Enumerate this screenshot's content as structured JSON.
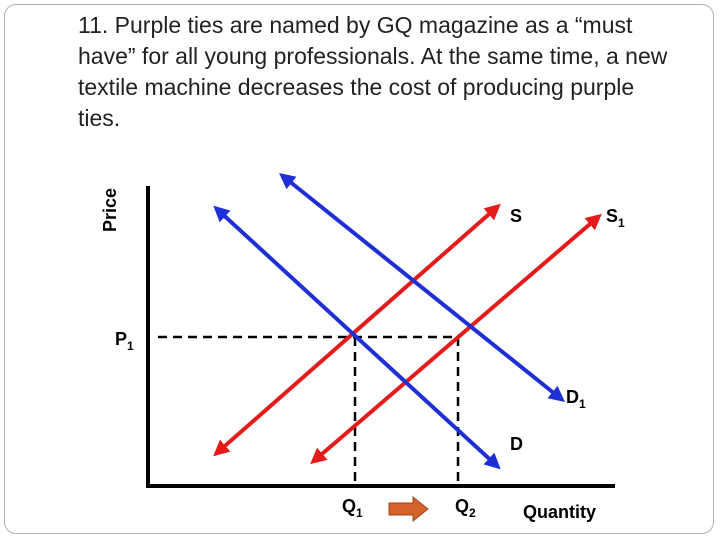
{
  "title": "11. Purple ties are named by GQ magazine as a “must have” for all young professionals. At the same time, a new textile machine decreases the cost of producing purple ties.",
  "diagram": {
    "y_axis_label": "Price",
    "x_axis_label": "Quantity",
    "price_label": "P",
    "price_sub": "1",
    "q1_label": "Q",
    "q1_sub": "1",
    "q2_label": "Q",
    "q2_sub": "2",
    "curves": {
      "supply": {
        "label": "S",
        "sub": "",
        "color": "#e31b1b"
      },
      "supply_new": {
        "label": "S",
        "sub": "1",
        "color": "#e31b1b"
      },
      "demand": {
        "label": "D",
        "sub": "",
        "color": "#1f2fd6"
      },
      "demand_new": {
        "label": "D",
        "sub": "1",
        "color": "#1f2fd6"
      }
    },
    "arrow_color": "#d4622a"
  }
}
